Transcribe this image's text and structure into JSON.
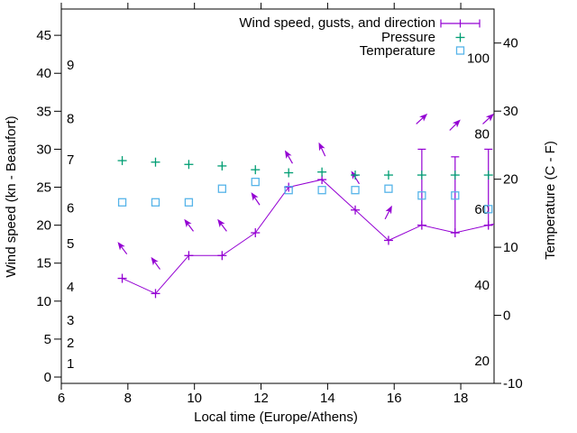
{
  "chart_data": {
    "type": "line",
    "xlabel": "Local time (Europe/Athens)",
    "ylabel": "Wind speed (kn - Beaufort)",
    "y2label": "Temperature (C - F)",
    "xlim": [
      6,
      19
    ],
    "ylim": [
      -0.83,
      48.46
    ],
    "y2lim": [
      -10,
      45
    ],
    "xticks": [
      6,
      8,
      10,
      12,
      14,
      16,
      18
    ],
    "yticks": [
      0,
      5,
      10,
      15,
      20,
      25,
      30,
      35,
      40,
      45
    ],
    "y2ticks": [
      -10,
      0,
      10,
      20,
      30,
      40
    ],
    "beaufort_labels": [
      {
        "label": "1",
        "at_kn": 1.8
      },
      {
        "label": "2",
        "at_kn": 4.5
      },
      {
        "label": "3",
        "at_kn": 7.5
      },
      {
        "label": "4",
        "at_kn": 11.9
      },
      {
        "label": "5",
        "at_kn": 17.6
      },
      {
        "label": "6",
        "at_kn": 22.3
      },
      {
        "label": "7",
        "at_kn": 28.6
      },
      {
        "label": "8",
        "at_kn": 34.0
      },
      {
        "label": "9",
        "at_kn": 41.1
      }
    ],
    "fahrenheit_labels": [
      {
        "label": "20",
        "f": 20
      },
      {
        "label": "40",
        "f": 40
      },
      {
        "label": "60",
        "f": 60
      },
      {
        "label": "80",
        "f": 80
      },
      {
        "label": "100",
        "f": 100
      }
    ],
    "x_hours": [
      7.83,
      8.83,
      9.83,
      10.83,
      11.83,
      12.83,
      13.83,
      14.83,
      15.83,
      16.83,
      17.83,
      18.83
    ],
    "series": [
      {
        "name": "Wind speed, gusts, and direction",
        "type": "errorbar-line-with-direction-arrows",
        "marker": "plus",
        "color": "#9400d3",
        "wind_kn": [
          13,
          11,
          16,
          16,
          19,
          25,
          26,
          22,
          18,
          20,
          19,
          20
        ],
        "gust_kn": [
          null,
          null,
          null,
          null,
          null,
          null,
          null,
          null,
          null,
          30,
          29,
          30
        ],
        "arrow_y_kn": [
          17,
          15,
          20,
          20,
          23.5,
          29,
          30,
          26.3,
          21.7,
          34,
          33.2,
          34
        ],
        "arrow_angle_deg": [
          127,
          126,
          127,
          127,
          124,
          120,
          115,
          122,
          63,
          43,
          45,
          43
        ],
        "continues_past_right_border": true
      },
      {
        "name": "Pressure",
        "type": "points",
        "marker": "plus",
        "color": "#009e73",
        "y_in_left_axis_units": [
          28.5,
          28.3,
          28.0,
          27.8,
          27.3,
          26.9,
          27.0,
          26.6,
          26.6,
          26.6,
          26.6,
          26.6
        ]
      },
      {
        "name": "Temperature",
        "type": "points",
        "marker": "open-square",
        "color": "#56b4e9",
        "temp_c": [
          16.6,
          16.6,
          16.6,
          18.6,
          19.6,
          18.4,
          18.4,
          18.4,
          18.6,
          17.6,
          17.6,
          15.6
        ]
      }
    ],
    "legend_position": "top-right-inside",
    "grid": false,
    "frame_color": "#000000",
    "background": "#ffffff"
  }
}
